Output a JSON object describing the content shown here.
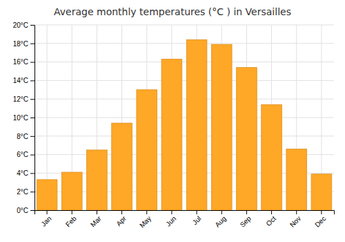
{
  "chart_data": {
    "type": "bar",
    "title": "Average monthly temperatures (°C ) in Versailles",
    "categories": [
      "Jan",
      "Feb",
      "Mar",
      "Apr",
      "May",
      "Jun",
      "Jul",
      "Aug",
      "Sep",
      "Oct",
      "Nov",
      "Dec"
    ],
    "values": [
      3.3,
      4.1,
      6.5,
      9.4,
      13.0,
      16.3,
      18.4,
      17.9,
      15.4,
      11.4,
      6.6,
      3.9
    ],
    "color": "#FFA726",
    "ylim": [
      0,
      20
    ],
    "yticks": [
      {
        "value": 0,
        "label": "0°C"
      },
      {
        "value": 2,
        "label": "2°C"
      },
      {
        "value": 4,
        "label": "4°C"
      },
      {
        "value": 6,
        "label": "6°C"
      },
      {
        "value": 8,
        "label": "8°C"
      },
      {
        "value": 10,
        "label": "10°C"
      },
      {
        "value": 12,
        "label": "12°C"
      },
      {
        "value": 14,
        "label": "14°C"
      },
      {
        "value": 16,
        "label": "16°C"
      },
      {
        "value": 18,
        "label": "18°C"
      },
      {
        "value": 20,
        "label": "20°C"
      }
    ],
    "grid": true
  }
}
